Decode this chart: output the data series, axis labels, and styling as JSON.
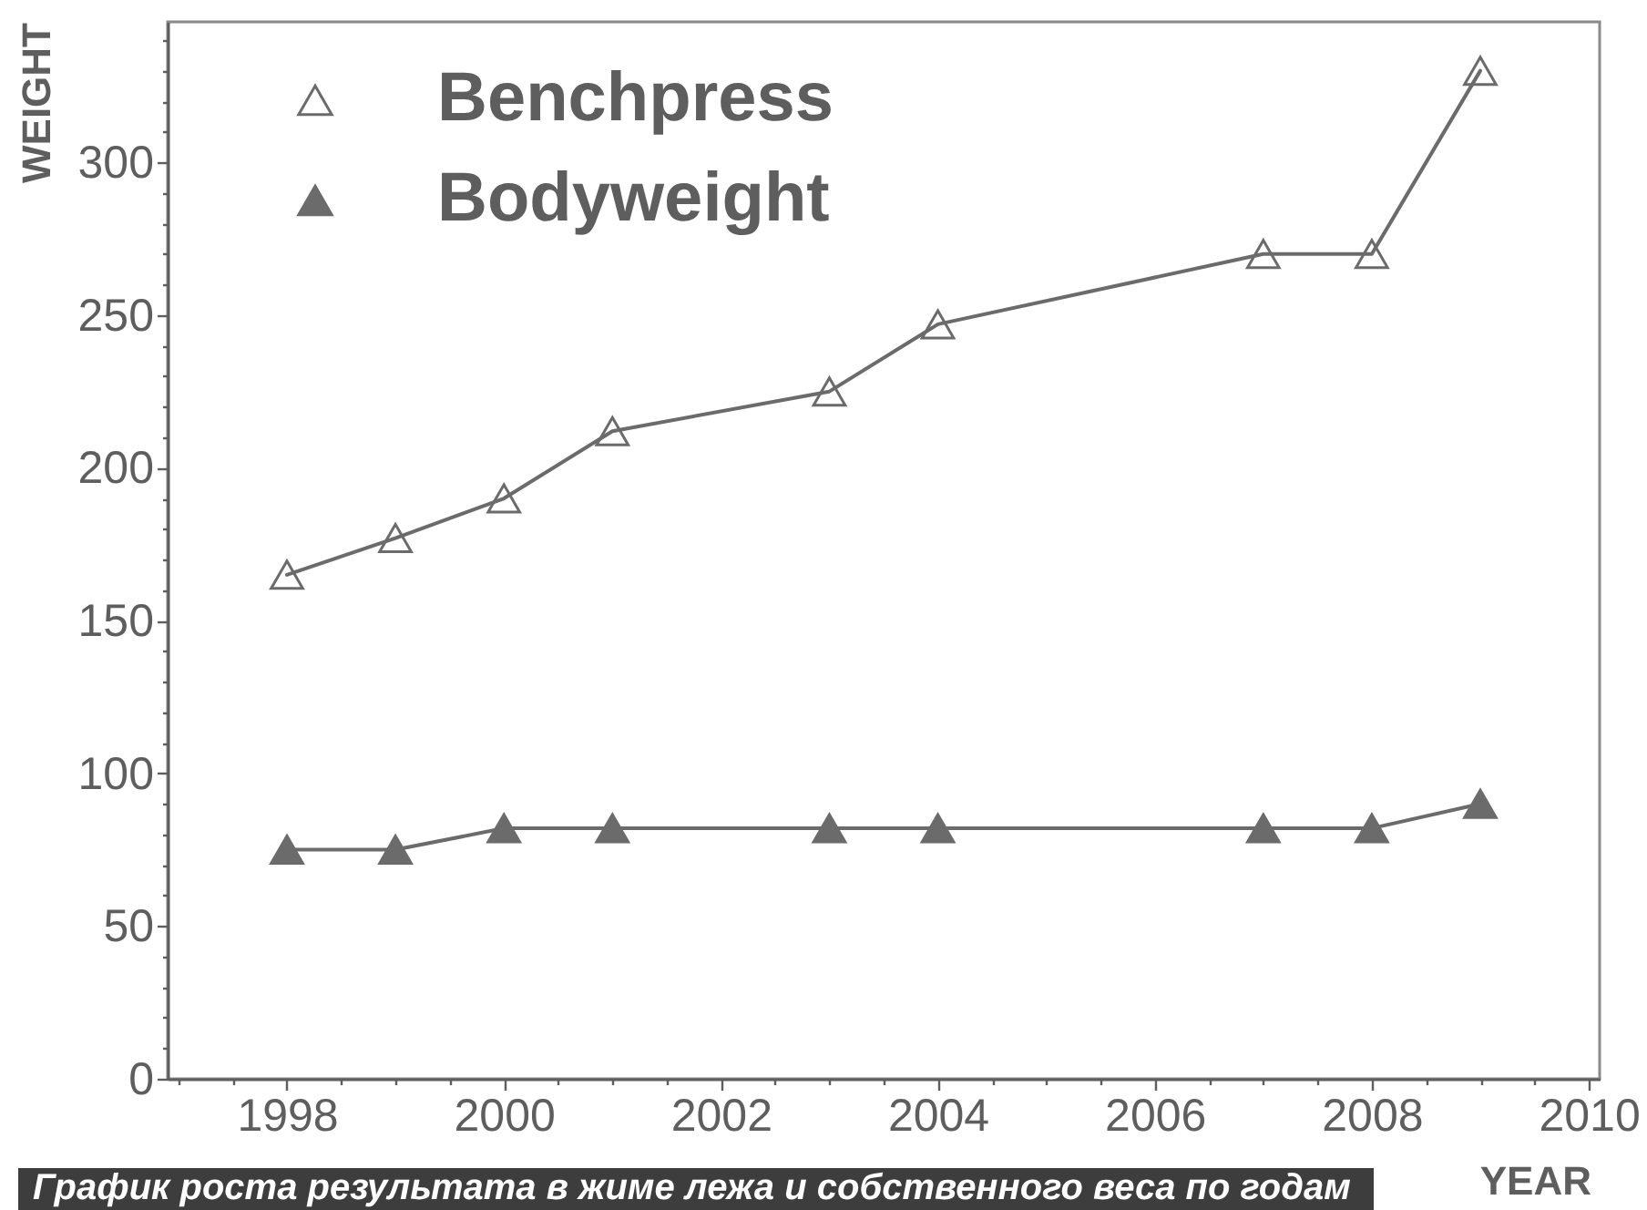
{
  "chart_data": {
    "type": "line",
    "xlabel": "YEAR",
    "ylabel": "WEIGHT",
    "x": [
      1998,
      1999,
      2000,
      2001,
      2003,
      2004,
      2007,
      2008,
      2009
    ],
    "series": [
      {
        "name": "Benchpress",
        "color": "#6b6b6b",
        "values": [
          165,
          177,
          190,
          212,
          225,
          247,
          270,
          270,
          330
        ]
      },
      {
        "name": "Bodyweight",
        "color": "#6b6b6b",
        "values": [
          75,
          75,
          82,
          82,
          82,
          82,
          82,
          82,
          90
        ]
      }
    ],
    "xlim": [
      1996.9,
      2010.1
    ],
    "ylim": [
      0,
      346
    ],
    "xticks": [
      {
        "value": 1997,
        "label": null
      },
      {
        "value": 1997.5,
        "label": null
      },
      1998,
      {
        "value": 1998.5,
        "label": null
      },
      {
        "value": 1999,
        "label": null
      },
      {
        "value": 1999.5,
        "label": null
      },
      2000,
      {
        "value": 2000.5,
        "label": null
      },
      {
        "value": 2001,
        "label": null
      },
      {
        "value": 2001.5,
        "label": null
      },
      2002,
      {
        "value": 2002.5,
        "label": null
      },
      {
        "value": 2003,
        "label": null
      },
      {
        "value": 2003.5,
        "label": null
      },
      2004,
      {
        "value": 2004.5,
        "label": null
      },
      {
        "value": 2005,
        "label": null
      },
      {
        "value": 2005.5,
        "label": null
      },
      2006,
      {
        "value": 2006.5,
        "label": null
      },
      {
        "value": 2007,
        "label": null
      },
      {
        "value": 2007.5,
        "label": null
      },
      2008,
      {
        "value": 2008.5,
        "label": null
      },
      {
        "value": 2009,
        "label": null
      },
      {
        "value": 2009.5,
        "label": null
      },
      2010
    ],
    "yticks": [
      0,
      {
        "value": 10,
        "label": null
      },
      {
        "value": 20,
        "label": null
      },
      {
        "value": 30,
        "label": null
      },
      {
        "value": 40,
        "label": null
      },
      50,
      {
        "value": 60,
        "label": null
      },
      {
        "value": 70,
        "label": null
      },
      {
        "value": 80,
        "label": null
      },
      {
        "value": 90,
        "label": null
      },
      100,
      {
        "value": 110,
        "label": null
      },
      {
        "value": 120,
        "label": null
      },
      {
        "value": 130,
        "label": null
      },
      {
        "value": 140,
        "label": null
      },
      150,
      {
        "value": 160,
        "label": null
      },
      {
        "value": 170,
        "label": null
      },
      {
        "value": 180,
        "label": null
      },
      {
        "value": 190,
        "label": null
      },
      200,
      {
        "value": 210,
        "label": null
      },
      {
        "value": 220,
        "label": null
      },
      {
        "value": 230,
        "label": null
      },
      {
        "value": 240,
        "label": null
      },
      250,
      {
        "value": 260,
        "label": null
      },
      {
        "value": 270,
        "label": null
      },
      {
        "value": 280,
        "label": null
      },
      {
        "value": 290,
        "label": null
      },
      300,
      {
        "value": 310,
        "label": null
      },
      {
        "value": 320,
        "label": null
      },
      {
        "value": 330,
        "label": null
      },
      {
        "value": 340,
        "label": null
      }
    ],
    "marker": "triangle",
    "line_style": "solid",
    "legend": "top left",
    "annotations": [
      "График роста результата в жиме лежа и собственного веса по годам"
    ]
  }
}
